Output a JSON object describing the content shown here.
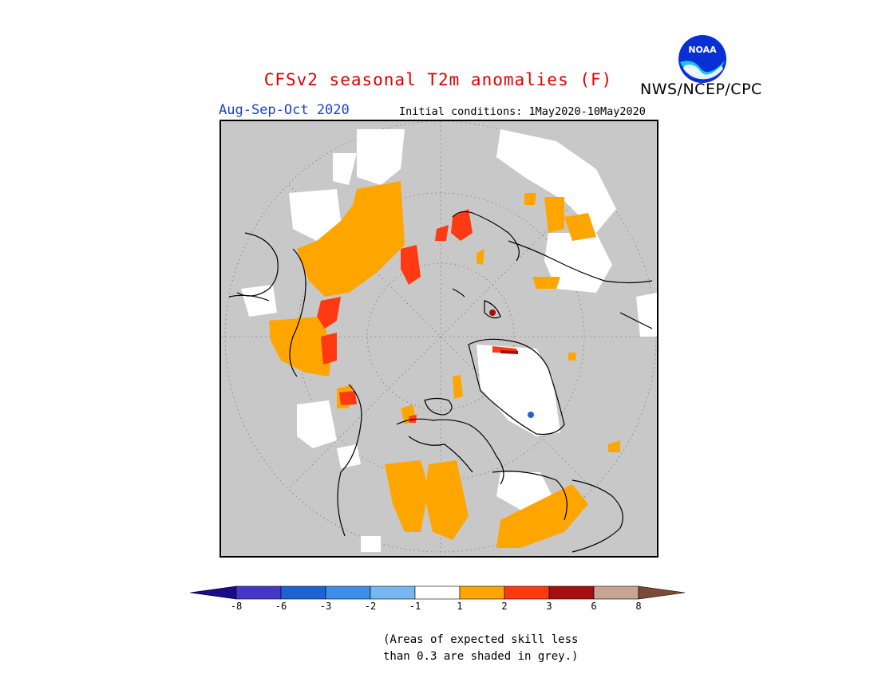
{
  "header": {
    "title": "CFSv2 seasonal T2m anomalies (F)",
    "agency": "NWS/NCEP/CPC",
    "period": "Aug-Sep-Oct 2020",
    "initial_conditions": "Initial conditions: 1May2020-10May2020"
  },
  "logo": {
    "text": "NOAA",
    "icon": "noaa-logo"
  },
  "legend": {
    "boundaries": [
      "-8",
      "-6",
      "-3",
      "-2",
      "-1",
      "1",
      "2",
      "3",
      "6",
      "8"
    ],
    "colors": [
      "#1a0a8c",
      "#4636c8",
      "#1f63d2",
      "#3d8ee6",
      "#78b6ef",
      "#ffffff",
      "#ffa500",
      "#ff3a12",
      "#a50f0f",
      "#c9a393",
      "#7a4a36"
    ],
    "grey_color": "#c8c8c8"
  },
  "note": {
    "line1": "(Areas of expected skill less",
    "line2": "than 0.3 are shaded in grey.)"
  },
  "map": {
    "projection": "north polar stereographic",
    "skill_mask_color": "#c8c8c8"
  }
}
